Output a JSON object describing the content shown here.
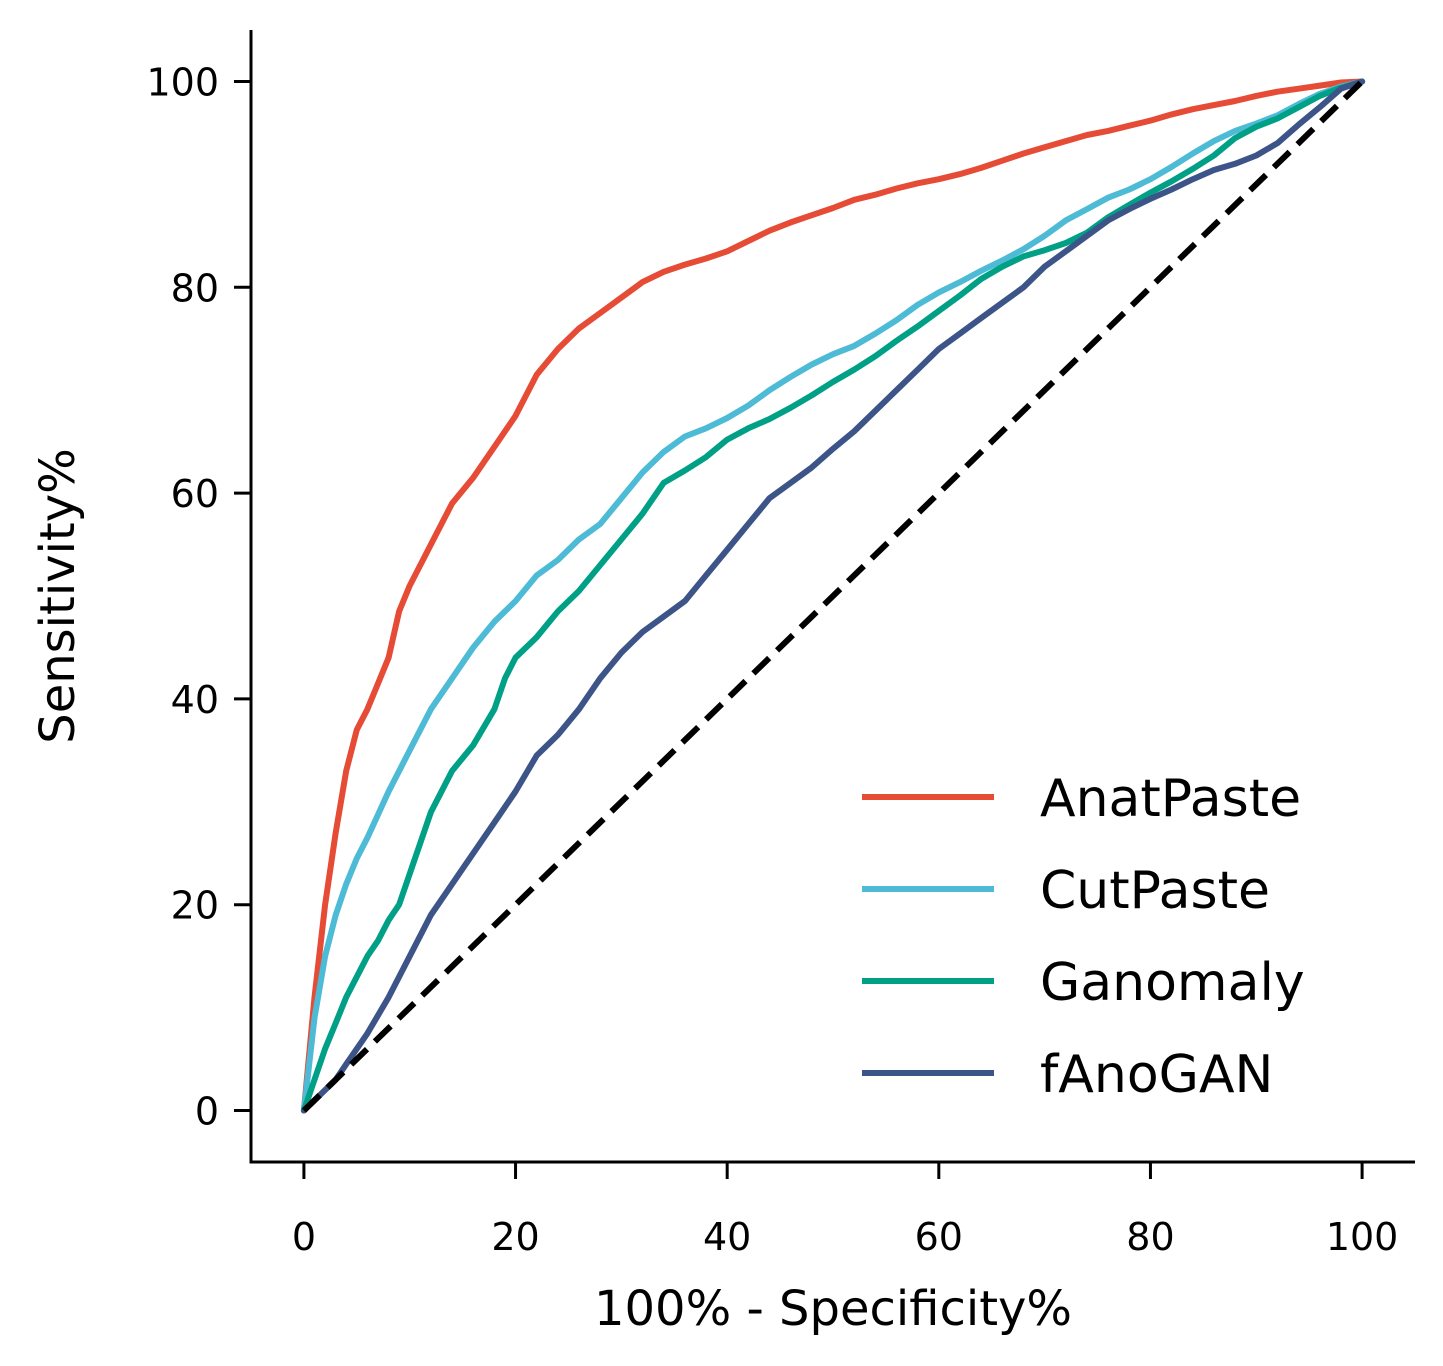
{
  "chart_data": {
    "type": "line",
    "xlabel": "100% - Specificity%",
    "ylabel": "Sensitivity%",
    "xlim": [
      -5,
      105
    ],
    "ylim": [
      -5,
      105
    ],
    "xticks": [
      "0",
      "20",
      "40",
      "60",
      "80",
      "100"
    ],
    "yticks": [
      "0",
      "20",
      "40",
      "60",
      "80",
      "100"
    ],
    "grid": false,
    "legend_position": "bottom-right",
    "series": [
      {
        "name": "AnatPaste",
        "color": "#e64b35",
        "x": [
          0,
          1,
          2,
          3,
          4,
          5,
          6,
          7,
          8,
          9,
          10,
          12,
          14,
          16,
          18,
          20,
          22,
          24,
          26,
          28,
          30,
          32,
          34,
          36,
          38,
          40,
          42,
          44,
          46,
          48,
          50,
          52,
          54,
          56,
          58,
          60,
          62,
          64,
          66,
          68,
          70,
          72,
          74,
          76,
          78,
          80,
          82,
          84,
          86,
          88,
          90,
          92,
          94,
          96,
          98,
          100
        ],
        "y": [
          0,
          11,
          20,
          27,
          33,
          37,
          39,
          41.5,
          44,
          48.5,
          51,
          55,
          59,
          61.5,
          64.5,
          67.5,
          71.5,
          74,
          76,
          77.5,
          79,
          80.5,
          81.5,
          82.2,
          82.8,
          83.5,
          84.5,
          85.5,
          86.3,
          87,
          87.7,
          88.5,
          89,
          89.6,
          90.1,
          90.5,
          91,
          91.6,
          92.3,
          93,
          93.6,
          94.2,
          94.8,
          95.2,
          95.7,
          96.2,
          96.8,
          97.3,
          97.7,
          98.1,
          98.6,
          99,
          99.3,
          99.6,
          99.9,
          100
        ]
      },
      {
        "name": "CutPaste",
        "color": "#4dbbd5",
        "x": [
          0,
          1,
          2,
          3,
          4,
          5,
          6,
          8,
          10,
          12,
          14,
          16,
          18,
          20,
          22,
          24,
          26,
          28,
          30,
          32,
          34,
          36,
          38,
          40,
          42,
          44,
          46,
          48,
          50,
          52,
          54,
          56,
          58,
          60,
          62,
          64,
          66,
          68,
          70,
          72,
          74,
          76,
          78,
          80,
          82,
          84,
          86,
          88,
          90,
          92,
          94,
          96,
          98,
          100
        ],
        "y": [
          0,
          9,
          15,
          19,
          22,
          24.5,
          26.5,
          31,
          35,
          39,
          42,
          45,
          47.5,
          49.5,
          52,
          53.5,
          55.5,
          57,
          59.5,
          62,
          64,
          65.5,
          66.3,
          67.3,
          68.5,
          70,
          71.3,
          72.5,
          73.5,
          74.3,
          75.5,
          76.8,
          78.3,
          79.5,
          80.5,
          81.6,
          82.6,
          83.7,
          85,
          86.5,
          87.6,
          88.7,
          89.5,
          90.5,
          91.7,
          93,
          94.2,
          95.2,
          95.9,
          96.7,
          97.8,
          98.8,
          99.5,
          100
        ]
      },
      {
        "name": "Ganomaly",
        "color": "#00a087",
        "x": [
          0,
          1,
          2,
          3,
          4,
          5,
          6,
          7,
          8,
          9,
          10,
          12,
          14,
          16,
          18,
          19,
          20,
          22,
          24,
          26,
          28,
          30,
          32,
          34,
          36,
          38,
          40,
          42,
          44,
          46,
          48,
          50,
          52,
          54,
          56,
          58,
          60,
          62,
          64,
          66,
          68,
          70,
          72,
          74,
          76,
          78,
          80,
          82,
          84,
          86,
          88,
          90,
          92,
          94,
          96,
          98,
          100
        ],
        "y": [
          0,
          3,
          6,
          8.5,
          11,
          13,
          15,
          16.5,
          18.5,
          20,
          23,
          29,
          33,
          35.5,
          39,
          42,
          44,
          46,
          48.5,
          50.5,
          53,
          55.5,
          58,
          61,
          62.2,
          63.5,
          65.2,
          66.3,
          67.2,
          68.3,
          69.5,
          70.8,
          72,
          73.3,
          74.8,
          76.2,
          77.7,
          79.2,
          80.8,
          82,
          83,
          83.6,
          84.3,
          85.3,
          86.8,
          88,
          89.2,
          90.3,
          91.5,
          92.8,
          94.5,
          95.6,
          96.4,
          97.5,
          98.6,
          99.4,
          100
        ]
      },
      {
        "name": "fAnoGAN",
        "color": "#3c5488",
        "x": [
          0,
          1,
          2,
          3,
          4,
          5,
          6,
          8,
          10,
          12,
          14,
          16,
          18,
          20,
          22,
          24,
          26,
          28,
          30,
          32,
          34,
          36,
          38,
          40,
          42,
          44,
          46,
          48,
          50,
          52,
          54,
          56,
          58,
          60,
          62,
          64,
          66,
          68,
          70,
          72,
          74,
          76,
          78,
          80,
          82,
          84,
          86,
          88,
          90,
          92,
          94,
          96,
          98,
          100
        ],
        "y": [
          0,
          1,
          2,
          3,
          4.5,
          6,
          7.5,
          11,
          15,
          19,
          22,
          25,
          28,
          31,
          34.5,
          36.5,
          39,
          42,
          44.5,
          46.5,
          48,
          49.5,
          52,
          54.5,
          57,
          59.5,
          61,
          62.5,
          64.3,
          66,
          68,
          70,
          72,
          74,
          75.5,
          77,
          78.5,
          80,
          82,
          83.5,
          85,
          86.5,
          87.6,
          88.6,
          89.5,
          90.5,
          91.4,
          92,
          92.8,
          94,
          95.8,
          97.5,
          99.3,
          100
        ]
      }
    ],
    "reference_line": {
      "style": "dashed",
      "color": "#000000",
      "x": [
        0,
        100
      ],
      "y": [
        0,
        100
      ]
    }
  }
}
